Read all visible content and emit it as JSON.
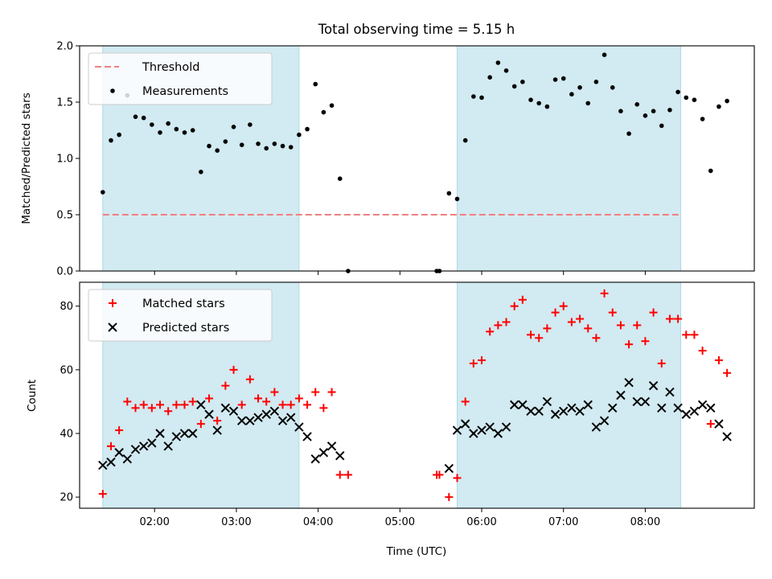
{
  "chart_data": [
    {
      "type": "scatter",
      "title": "Total observing time = 5.15 h",
      "xlabel": "",
      "ylabel": "Matched/Predicted stars",
      "xlim": [
        "01:05",
        "09:20"
      ],
      "ylim": [
        0,
        2.0
      ],
      "yticks": [
        "0.0",
        "0.5",
        "1.0",
        "1.5",
        "2.0"
      ],
      "xticks": [
        "02:00",
        "03:00",
        "04:00",
        "05:00",
        "06:00",
        "07:00",
        "08:00"
      ],
      "show_x_tick_labels": false,
      "shaded_intervals": [
        [
          "01:22",
          "03:46"
        ],
        [
          "05:42",
          "08:26"
        ]
      ],
      "shade_color": "#add8e6",
      "legend_position": "upper left",
      "threshold": {
        "name": "Threshold",
        "value": 0.5,
        "x_range": [
          "01:22",
          "08:26"
        ],
        "color": "#f08080",
        "style": "dashed"
      },
      "series": [
        {
          "name": "Measurements",
          "marker": "dot",
          "color": "#000000",
          "points": [
            [
              "01:22",
              0.7
            ],
            [
              "01:28",
              1.16
            ],
            [
              "01:34",
              1.21
            ],
            [
              "01:40",
              1.56
            ],
            [
              "01:46",
              1.37
            ],
            [
              "01:52",
              1.36
            ],
            [
              "01:58",
              1.3
            ],
            [
              "02:04",
              1.23
            ],
            [
              "02:10",
              1.31
            ],
            [
              "02:16",
              1.26
            ],
            [
              "02:22",
              1.23
            ],
            [
              "02:28",
              1.25
            ],
            [
              "02:34",
              0.88
            ],
            [
              "02:40",
              1.11
            ],
            [
              "02:46",
              1.07
            ],
            [
              "02:52",
              1.15
            ],
            [
              "02:58",
              1.28
            ],
            [
              "03:04",
              1.12
            ],
            [
              "03:10",
              1.3
            ],
            [
              "03:16",
              1.13
            ],
            [
              "03:22",
              1.09
            ],
            [
              "03:28",
              1.13
            ],
            [
              "03:34",
              1.11
            ],
            [
              "03:40",
              1.1
            ],
            [
              "03:46",
              1.21
            ],
            [
              "03:52",
              1.26
            ],
            [
              "03:58",
              1.66
            ],
            [
              "04:04",
              1.41
            ],
            [
              "04:10",
              1.47
            ],
            [
              "04:16",
              0.82
            ],
            [
              "04:22",
              0.0
            ],
            [
              "05:27",
              0.0
            ],
            [
              "05:29",
              0.0
            ],
            [
              "05:36",
              0.69
            ],
            [
              "05:42",
              0.64
            ],
            [
              "05:48",
              1.16
            ],
            [
              "05:54",
              1.55
            ],
            [
              "06:00",
              1.54
            ],
            [
              "06:06",
              1.72
            ],
            [
              "06:12",
              1.85
            ],
            [
              "06:18",
              1.78
            ],
            [
              "06:24",
              1.64
            ],
            [
              "06:30",
              1.68
            ],
            [
              "06:36",
              1.52
            ],
            [
              "06:42",
              1.49
            ],
            [
              "06:48",
              1.46
            ],
            [
              "06:54",
              1.7
            ],
            [
              "07:00",
              1.71
            ],
            [
              "07:06",
              1.57
            ],
            [
              "07:12",
              1.63
            ],
            [
              "07:18",
              1.49
            ],
            [
              "07:24",
              1.68
            ],
            [
              "07:30",
              1.92
            ],
            [
              "07:36",
              1.63
            ],
            [
              "07:42",
              1.42
            ],
            [
              "07:48",
              1.22
            ],
            [
              "07:54",
              1.48
            ],
            [
              "08:00",
              1.38
            ],
            [
              "08:06",
              1.42
            ],
            [
              "08:12",
              1.29
            ],
            [
              "08:18",
              1.43
            ],
            [
              "08:24",
              1.59
            ],
            [
              "08:30",
              1.54
            ],
            [
              "08:36",
              1.52
            ],
            [
              "08:42",
              1.35
            ],
            [
              "08:48",
              0.89
            ],
            [
              "08:54",
              1.46
            ],
            [
              "09:00",
              1.51
            ]
          ]
        }
      ]
    },
    {
      "type": "scatter",
      "title": "",
      "xlabel": "Time (UTC)",
      "ylabel": "Count",
      "xlim": [
        "01:05",
        "09:20"
      ],
      "ylim": [
        16.5,
        87.5
      ],
      "yticks": [
        "20",
        "40",
        "60",
        "80"
      ],
      "xticks": [
        "02:00",
        "03:00",
        "04:00",
        "05:00",
        "06:00",
        "07:00",
        "08:00"
      ],
      "shaded_intervals": [
        [
          "01:22",
          "03:46"
        ],
        [
          "05:42",
          "08:26"
        ]
      ],
      "shade_color": "#add8e6",
      "legend_position": "upper left",
      "series": [
        {
          "name": "Matched stars",
          "marker": "plus",
          "color": "#ff0000",
          "points": [
            [
              "01:22",
              21
            ],
            [
              "01:28",
              36
            ],
            [
              "01:34",
              41
            ],
            [
              "01:40",
              50
            ],
            [
              "01:46",
              48
            ],
            [
              "01:52",
              49
            ],
            [
              "01:58",
              48
            ],
            [
              "02:04",
              49
            ],
            [
              "02:10",
              47
            ],
            [
              "02:16",
              49
            ],
            [
              "02:22",
              49
            ],
            [
              "02:28",
              50
            ],
            [
              "02:34",
              43
            ],
            [
              "02:40",
              51
            ],
            [
              "02:46",
              44
            ],
            [
              "02:52",
              55
            ],
            [
              "02:58",
              60
            ],
            [
              "03:04",
              49
            ],
            [
              "03:10",
              57
            ],
            [
              "03:16",
              51
            ],
            [
              "03:22",
              50
            ],
            [
              "03:28",
              53
            ],
            [
              "03:34",
              49
            ],
            [
              "03:40",
              49
            ],
            [
              "03:46",
              51
            ],
            [
              "03:52",
              49
            ],
            [
              "03:58",
              53
            ],
            [
              "04:04",
              48
            ],
            [
              "04:10",
              53
            ],
            [
              "04:16",
              27
            ],
            [
              "04:22",
              27
            ],
            [
              "05:27",
              27
            ],
            [
              "05:29",
              27
            ],
            [
              "05:36",
              20
            ],
            [
              "05:42",
              26
            ],
            [
              "05:48",
              50
            ],
            [
              "05:54",
              62
            ],
            [
              "06:00",
              63
            ],
            [
              "06:06",
              72
            ],
            [
              "06:12",
              74
            ],
            [
              "06:18",
              75
            ],
            [
              "06:24",
              80
            ],
            [
              "06:30",
              82
            ],
            [
              "06:36",
              71
            ],
            [
              "06:42",
              70
            ],
            [
              "06:48",
              73
            ],
            [
              "06:54",
              78
            ],
            [
              "07:00",
              80
            ],
            [
              "07:06",
              75
            ],
            [
              "07:12",
              76
            ],
            [
              "07:18",
              73
            ],
            [
              "07:24",
              70
            ],
            [
              "07:30",
              84
            ],
            [
              "07:36",
              78
            ],
            [
              "07:42",
              74
            ],
            [
              "07:48",
              68
            ],
            [
              "07:54",
              74
            ],
            [
              "08:00",
              69
            ],
            [
              "08:06",
              78
            ],
            [
              "08:12",
              62
            ],
            [
              "08:18",
              76
            ],
            [
              "08:24",
              76
            ],
            [
              "08:30",
              71
            ],
            [
              "08:36",
              71
            ],
            [
              "08:42",
              66
            ],
            [
              "08:48",
              43
            ],
            [
              "08:54",
              63
            ],
            [
              "09:00",
              59
            ]
          ]
        },
        {
          "name": "Predicted stars",
          "marker": "x",
          "color": "#000000",
          "points": [
            [
              "01:22",
              30
            ],
            [
              "01:28",
              31
            ],
            [
              "01:34",
              34
            ],
            [
              "01:40",
              32
            ],
            [
              "01:46",
              35
            ],
            [
              "01:52",
              36
            ],
            [
              "01:58",
              37
            ],
            [
              "02:04",
              40
            ],
            [
              "02:10",
              36
            ],
            [
              "02:16",
              39
            ],
            [
              "02:22",
              40
            ],
            [
              "02:28",
              40
            ],
            [
              "02:34",
              49
            ],
            [
              "02:40",
              46
            ],
            [
              "02:46",
              41
            ],
            [
              "02:52",
              48
            ],
            [
              "02:58",
              47
            ],
            [
              "03:04",
              44
            ],
            [
              "03:10",
              44
            ],
            [
              "03:16",
              45
            ],
            [
              "03:22",
              46
            ],
            [
              "03:28",
              47
            ],
            [
              "03:34",
              44
            ],
            [
              "03:40",
              45
            ],
            [
              "03:46",
              42
            ],
            [
              "03:52",
              39
            ],
            [
              "03:58",
              32
            ],
            [
              "04:04",
              34
            ],
            [
              "04:10",
              36
            ],
            [
              "04:16",
              33
            ],
            [
              "05:36",
              29
            ],
            [
              "05:42",
              41
            ],
            [
              "05:48",
              43
            ],
            [
              "05:54",
              40
            ],
            [
              "06:00",
              41
            ],
            [
              "06:06",
              42
            ],
            [
              "06:12",
              40
            ],
            [
              "06:18",
              42
            ],
            [
              "06:24",
              49
            ],
            [
              "06:30",
              49
            ],
            [
              "06:36",
              47
            ],
            [
              "06:42",
              47
            ],
            [
              "06:48",
              50
            ],
            [
              "06:54",
              46
            ],
            [
              "07:00",
              47
            ],
            [
              "07:06",
              48
            ],
            [
              "07:12",
              47
            ],
            [
              "07:18",
              49
            ],
            [
              "07:24",
              42
            ],
            [
              "07:30",
              44
            ],
            [
              "07:36",
              48
            ],
            [
              "07:42",
              52
            ],
            [
              "07:48",
              56
            ],
            [
              "07:54",
              50
            ],
            [
              "08:00",
              50
            ],
            [
              "08:06",
              55
            ],
            [
              "08:12",
              48
            ],
            [
              "08:18",
              53
            ],
            [
              "08:24",
              48
            ],
            [
              "08:30",
              46
            ],
            [
              "08:36",
              47
            ],
            [
              "08:42",
              49
            ],
            [
              "08:48",
              48
            ],
            [
              "08:54",
              43
            ],
            [
              "09:00",
              39
            ]
          ]
        }
      ]
    }
  ]
}
